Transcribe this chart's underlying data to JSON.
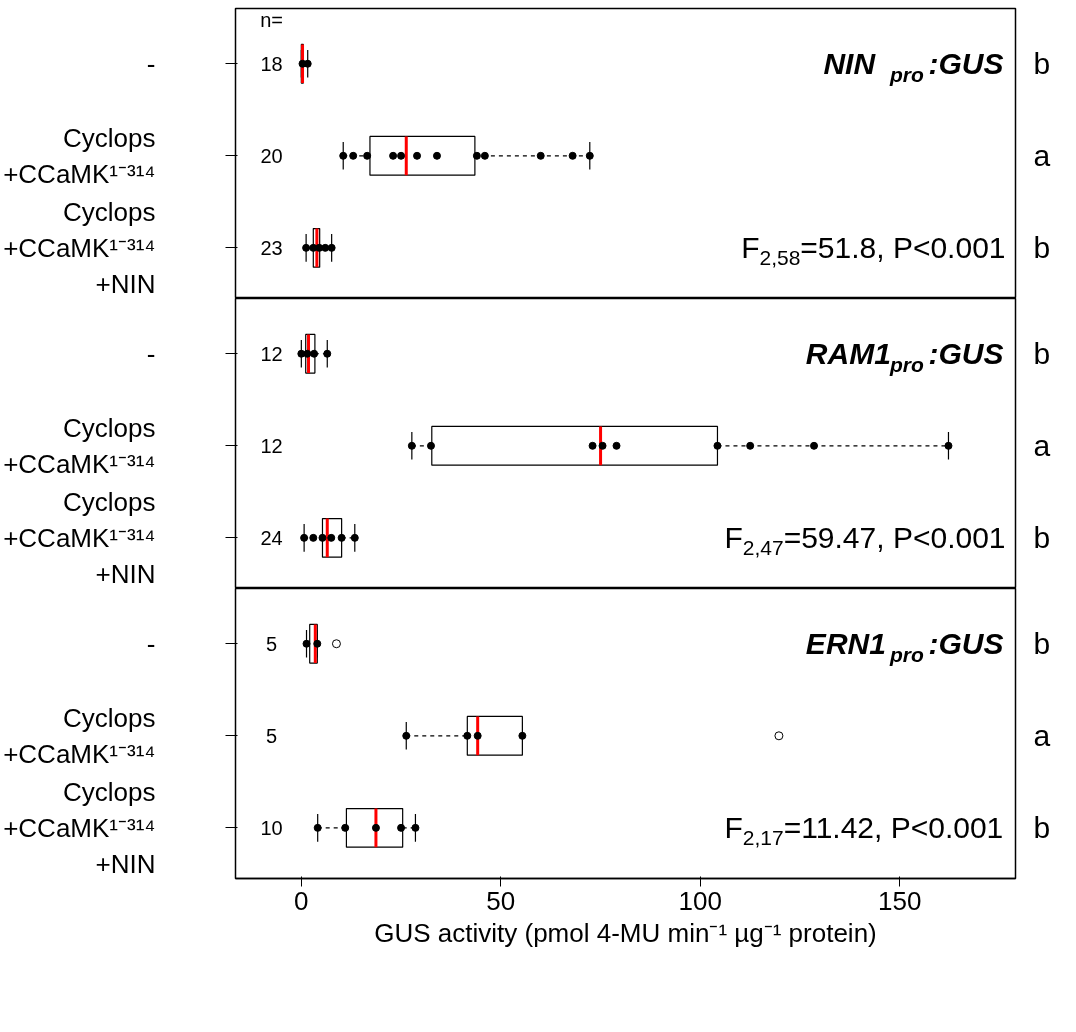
{
  "chart_data": [
    {
      "type": "box",
      "orientation": "horizontal",
      "categories": [
        "-",
        "Cyclops\n+CCaMK¹⁻³¹⁴",
        "Cyclops\n+CCaMK¹⁻³¹⁴\n+NIN"
      ],
      "xlim": [
        -16.5,
        179
      ],
      "xticks": [
        0,
        50,
        100,
        150
      ],
      "tick_labels": "y",
      "boxes": [
        {
          "low": 0,
          "q1": 0,
          "median": 0.3,
          "q3": 0.5,
          "high": 1.6
        },
        {
          "low": 10.5,
          "q1": 17.2,
          "median": 26.3,
          "q3": 43.5,
          "high": 72.3
        },
        {
          "low": 1.2,
          "q1": 3,
          "median": 3.9,
          "q3": 4.6,
          "high": 7.6
        }
      ],
      "series": [
        {
          "type": "scatter",
          "color": "#000000",
          "x": [
            "-",
            "-",
            "Cyclops\n+CCaMK¹⁻³¹⁴",
            "Cyclops\n+CCaMK¹⁻³¹⁴",
            "Cyclops\n+CCaMK¹⁻³¹⁴",
            "Cyclops\n+CCaMK¹⁻³¹⁴",
            "Cyclops\n+CCaMK¹⁻³¹⁴",
            "Cyclops\n+CCaMK¹⁻³¹⁴",
            "Cyclops\n+CCaMK¹⁻³¹⁴",
            "Cyclops\n+CCaMK¹⁻³¹⁴",
            "Cyclops\n+CCaMK¹⁻³¹⁴",
            "Cyclops\n+CCaMK¹⁻³¹⁴",
            "Cyclops\n+CCaMK¹⁻³¹⁴",
            "Cyclops\n+CCaMK¹⁻³¹⁴",
            "Cyclops\n+CCaMK¹⁻³¹⁴\n+NIN",
            "Cyclops\n+CCaMK¹⁻³¹⁴\n+NIN",
            "Cyclops\n+CCaMK¹⁻³¹⁴\n+NIN",
            "Cyclops\n+CCaMK¹⁻³¹⁴\n+NIN",
            "Cyclops\n+CCaMK¹⁻³¹⁴\n+NIN"
          ],
          "values": [
            0.3,
            1.6,
            10.5,
            13,
            16.5,
            23,
            25,
            29,
            34,
            44,
            46,
            60,
            68,
            72.3,
            1.2,
            3,
            4.5,
            6,
            7.6
          ]
        }
      ],
      "annotations": [
        "NIN$_{pro}$:GUS",
        "F$_{2,58}$=51.8, P<0.001",
        "18",
        "20",
        "23",
        "b",
        "a",
        "b",
        "n="
      ]
    },
    {
      "type": "box",
      "orientation": "horizontal",
      "categories": [
        "-",
        "Cyclops\n+CCaMK¹⁻³¹⁴",
        "Cyclops\n+CCaMK¹⁻³¹⁴\n+NIN"
      ],
      "xlim": [
        -16.5,
        179
      ],
      "xticks": [
        0,
        50,
        100,
        150
      ],
      "tick_labels": "y",
      "boxes": [
        {
          "low": 0,
          "q1": 1.1,
          "median": 1.8,
          "q3": 3.4,
          "high": 6.5
        },
        {
          "low": 27.7,
          "q1": 32.7,
          "median": 75,
          "q3": 104.3,
          "high": 162.2
        },
        {
          "low": 0.7,
          "q1": 5.3,
          "median": 6.5,
          "q3": 10.1,
          "high": 13.4
        }
      ],
      "series": [
        {
          "type": "scatter",
          "color": "#000000",
          "x": [
            "-",
            "-",
            "-",
            "-",
            "Cyclops\n+CCaMK¹⁻³¹⁴",
            "Cyclops\n+CCaMK¹⁻³¹⁴",
            "Cyclops\n+CCaMK¹⁻³¹⁴",
            "Cyclops\n+CCaMK¹⁻³¹⁴",
            "Cyclops\n+CCaMK¹⁻³¹⁴",
            "Cyclops\n+CCaMK¹⁻³¹⁴",
            "Cyclops\n+CCaMK¹⁻³¹⁴",
            "Cyclops\n+CCaMK¹⁻³¹⁴",
            "Cyclops\n+CCaMK¹⁻³¹⁴",
            "Cyclops\n+CCaMK¹⁻³¹⁴\n+NIN",
            "Cyclops\n+CCaMK¹⁻³¹⁴\n+NIN",
            "Cyclops\n+CCaMK¹⁻³¹⁴\n+NIN",
            "Cyclops\n+CCaMK¹⁻³¹⁴\n+NIN",
            "Cyclops\n+CCaMK¹⁻³¹⁴\n+NIN",
            "Cyclops\n+CCaMK¹⁻³¹⁴\n+NIN"
          ],
          "values": [
            0,
            1.5,
            3.2,
            6.5,
            27.7,
            32.5,
            73,
            75.5,
            79,
            104.3,
            112.5,
            128.5,
            162.2,
            0.7,
            3,
            5.3,
            7.5,
            10.1,
            13.4
          ]
        }
      ],
      "annotations": [
        "RAM1$_{pro}$:GUS",
        "F$_{2,47}$=59.47, P<0.001",
        "12",
        "12",
        "24",
        "b",
        "a",
        "b"
      ]
    },
    {
      "type": "box",
      "orientation": "horizontal",
      "categories": [
        "-",
        "Cyclops\n+CCaMK¹⁻³¹⁴",
        "Cyclops\n+CCaMK¹⁻³¹⁴\n+NIN"
      ],
      "xlim": [
        -16.5,
        179
      ],
      "xticks": [
        0,
        50,
        100,
        150
      ],
      "xlabel": "GUS activity (pmol 4-MU min⁻¹ µg⁻¹ protein)",
      "boxes": [
        {
          "low": 1.3,
          "q1": 2.1,
          "median": 3.5,
          "q3": 4.0,
          "high": 4.0,
          "outliers": [
            8.8
          ]
        },
        {
          "low": 26.3,
          "q1": 41.6,
          "median": 44.2,
          "q3": 55.4,
          "high": 55.4,
          "outliers": [
            119.7
          ]
        },
        {
          "low": 4.1,
          "q1": 11.3,
          "median": 18.7,
          "q3": 25.4,
          "high": 28.6
        }
      ],
      "series": [
        {
          "type": "scatter",
          "color": "#000000",
          "x": [
            "-",
            "-",
            "Cyclops\n+CCaMK¹⁻³¹⁴",
            "Cyclops\n+CCaMK¹⁻³¹⁴",
            "Cyclops\n+CCaMK¹⁻³¹⁴",
            "Cyclops\n+CCaMK¹⁻³¹⁴",
            "Cyclops\n+CCaMK¹⁻³¹⁴\n+NIN",
            "Cyclops\n+CCaMK¹⁻³¹⁴\n+NIN",
            "Cyclops\n+CCaMK¹⁻³¹⁴\n+NIN",
            "Cyclops\n+CCaMK¹⁻³¹⁴\n+NIN",
            "Cyclops\n+CCaMK¹⁻³¹⁴\n+NIN"
          ],
          "values": [
            1.3,
            4.0,
            26.3,
            41.6,
            44.2,
            55.4,
            4.1,
            11,
            18.7,
            25,
            28.6
          ]
        }
      ],
      "annotations": [
        "ERN1$_{pro}$:GUS",
        "F$_{2,17}$=11.42, P<0.001",
        "5",
        "5",
        "10",
        "b",
        "a",
        "b"
      ]
    }
  ]
}
